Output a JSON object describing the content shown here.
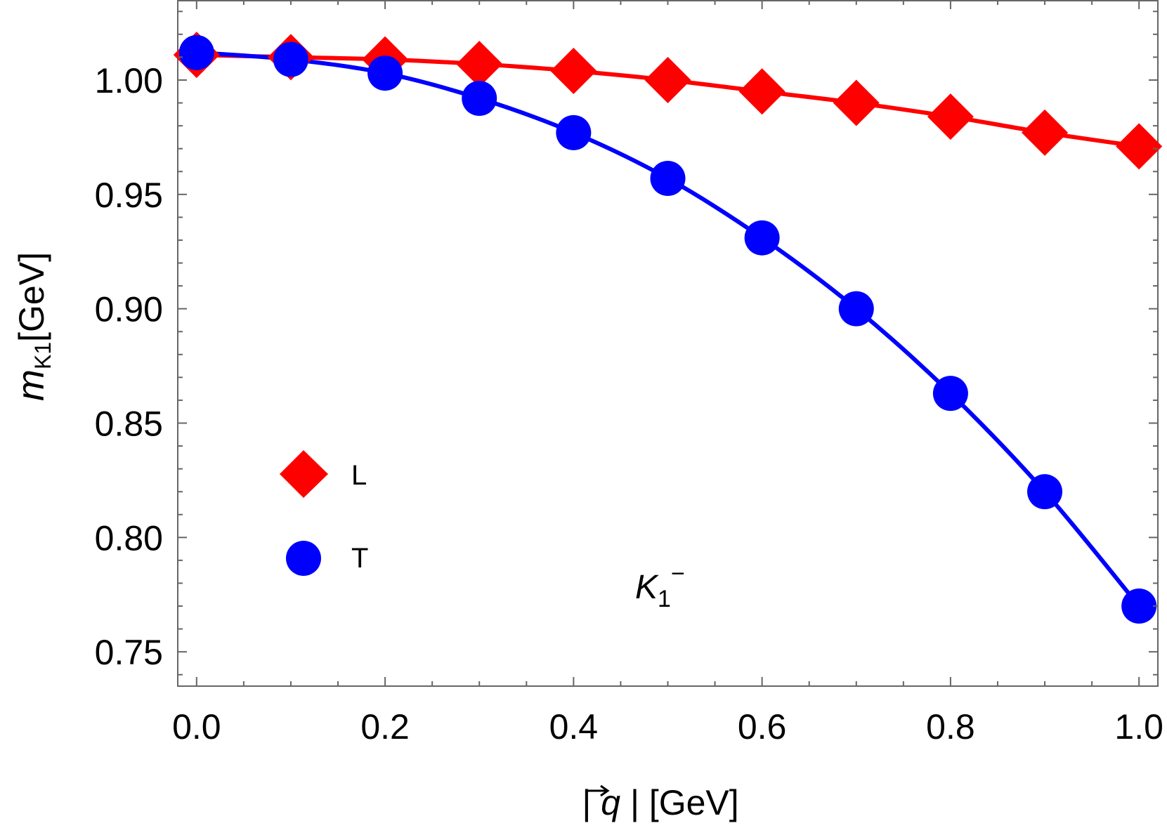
{
  "chart_data": {
    "type": "line",
    "xlabel": {
      "prefix": "| ",
      "symbol": "q",
      "suffix": " | [GeV]"
    },
    "ylabel": {
      "symbol": "m",
      "subscript": "K1",
      "unit": "[GeV]"
    },
    "xlim": [
      -0.02,
      1.02
    ],
    "ylim": [
      0.735,
      1.035
    ],
    "x_ticks": [
      "0.0",
      "0.2",
      "0.4",
      "0.6",
      "0.8",
      "1.0"
    ],
    "x_tick_values": [
      0,
      0.2,
      0.4,
      0.6,
      0.8,
      1.0
    ],
    "y_ticks": [
      "0.75",
      "0.80",
      "0.85",
      "0.90",
      "0.95",
      "1.00"
    ],
    "y_tick_values": [
      0.75,
      0.8,
      0.85,
      0.9,
      0.95,
      1.0
    ],
    "grid": false,
    "legend_position": "lower-left",
    "annotation": {
      "base": "K",
      "sub": "1",
      "sup": "−"
    },
    "x": [
      0.0,
      0.1,
      0.2,
      0.3,
      0.4,
      0.5,
      0.6,
      0.7,
      0.8,
      0.9,
      1.0
    ],
    "series": [
      {
        "name": "L",
        "marker": "diamond",
        "color": "#ff0000",
        "values": [
          1.011,
          1.01,
          1.009,
          1.007,
          1.004,
          1.0,
          0.995,
          0.99,
          0.984,
          0.977,
          0.971
        ]
      },
      {
        "name": "T",
        "marker": "circle",
        "color": "#0000ff",
        "values": [
          1.012,
          1.009,
          1.003,
          0.992,
          0.977,
          0.957,
          0.931,
          0.9,
          0.863,
          0.82,
          0.77
        ]
      }
    ]
  }
}
